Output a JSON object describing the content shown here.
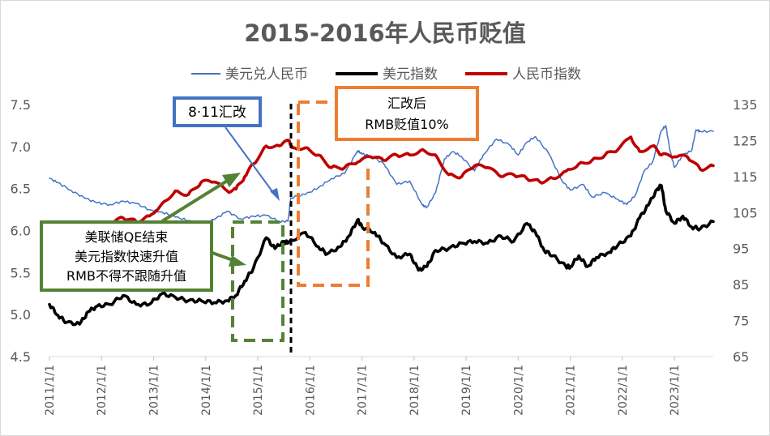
{
  "chart_data": {
    "type": "line",
    "title": "2015-2016年人民币贬值",
    "x_range": [
      "2011/1/1",
      "2023/9/30"
    ],
    "x_ticks": [
      "2011/1/1",
      "2012/1/1",
      "2013/1/1",
      "2014/1/1",
      "2015/1/1",
      "2016/1/1",
      "2017/1/1",
      "2018/1/1",
      "2019/1/1",
      "2020/1/1",
      "2021/1/1",
      "2022/1/1",
      "2023/1/1"
    ],
    "y_left": {
      "min": 4.5,
      "max": 7.5,
      "ticks": [
        "4.5",
        "5.0",
        "5.5",
        "6.0",
        "6.5",
        "7.0",
        "7.5"
      ]
    },
    "y_right": {
      "min": 65,
      "max": 135,
      "ticks": [
        "65",
        "75",
        "85",
        "95",
        "105",
        "115",
        "125",
        "135"
      ]
    },
    "legend_position": "top",
    "grid": false,
    "series": [
      {
        "name": "美元兑人民币",
        "color": "#4472c4",
        "axis": "left",
        "points": [
          [
            "2011/1/1",
            6.62
          ],
          [
            "2011/3/1",
            6.57
          ],
          [
            "2011/6/1",
            6.48
          ],
          [
            "2011/9/1",
            6.39
          ],
          [
            "2011/12/1",
            6.33
          ],
          [
            "2012/3/1",
            6.31
          ],
          [
            "2012/6/1",
            6.35
          ],
          [
            "2012/9/1",
            6.32
          ],
          [
            "2012/12/1",
            6.25
          ],
          [
            "2013/3/1",
            6.22
          ],
          [
            "2013/6/1",
            6.16
          ],
          [
            "2013/9/1",
            6.12
          ],
          [
            "2013/12/1",
            6.08
          ],
          [
            "2014/3/1",
            6.13
          ],
          [
            "2014/6/1",
            6.23
          ],
          [
            "2014/9/1",
            6.14
          ],
          [
            "2014/12/1",
            6.17
          ],
          [
            "2015/3/1",
            6.18
          ],
          [
            "2015/6/1",
            6.11
          ],
          [
            "2015/8/1",
            6.11
          ],
          [
            "2015/8/20",
            6.39
          ],
          [
            "2015/12/1",
            6.43
          ],
          [
            "2016/3/1",
            6.51
          ],
          [
            "2016/6/1",
            6.62
          ],
          [
            "2016/9/1",
            6.68
          ],
          [
            "2016/12/1",
            6.95
          ],
          [
            "2017/1/1",
            6.91
          ],
          [
            "2017/3/1",
            6.89
          ],
          [
            "2017/6/1",
            6.8
          ],
          [
            "2017/9/1",
            6.55
          ],
          [
            "2017/12/1",
            6.59
          ],
          [
            "2018/3/1",
            6.3
          ],
          [
            "2018/4/1",
            6.28
          ],
          [
            "2018/6/1",
            6.45
          ],
          [
            "2018/8/1",
            6.85
          ],
          [
            "2018/10/1",
            6.94
          ],
          [
            "2018/12/1",
            6.88
          ],
          [
            "2019/3/1",
            6.71
          ],
          [
            "2019/5/1",
            6.9
          ],
          [
            "2019/8/1",
            7.09
          ],
          [
            "2019/11/1",
            7.02
          ],
          [
            "2020/1/1",
            6.9
          ],
          [
            "2020/3/1",
            7.05
          ],
          [
            "2020/5/1",
            7.12
          ],
          [
            "2020/8/1",
            6.92
          ],
          [
            "2020/11/1",
            6.6
          ],
          [
            "2021/1/1",
            6.48
          ],
          [
            "2021/4/1",
            6.55
          ],
          [
            "2021/6/1",
            6.4
          ],
          [
            "2021/9/1",
            6.45
          ],
          [
            "2021/12/1",
            6.37
          ],
          [
            "2022/2/1",
            6.31
          ],
          [
            "2022/4/1",
            6.42
          ],
          [
            "2022/6/1",
            6.7
          ],
          [
            "2022/8/1",
            6.82
          ],
          [
            "2022/10/1",
            7.19
          ],
          [
            "2022/11/1",
            7.25
          ],
          [
            "2022/12/1",
            6.95
          ],
          [
            "2023/1/1",
            6.75
          ],
          [
            "2023/3/1",
            6.9
          ],
          [
            "2023/5/1",
            6.95
          ],
          [
            "2023/6/1",
            7.2
          ],
          [
            "2023/7/1",
            7.18
          ],
          [
            "2023/9/30",
            7.18
          ]
        ]
      },
      {
        "name": "美元指数",
        "color": "#000000",
        "axis": "right",
        "points": [
          [
            "2011/1/1",
            79.5
          ],
          [
            "2011/3/1",
            76.5
          ],
          [
            "2011/5/1",
            74.5
          ],
          [
            "2011/8/1",
            74.0
          ],
          [
            "2011/10/1",
            77.5
          ],
          [
            "2011/12/1",
            79.0
          ],
          [
            "2012/3/1",
            79.5
          ],
          [
            "2012/6/1",
            82.0
          ],
          [
            "2012/9/1",
            79.5
          ],
          [
            "2012/12/1",
            79.5
          ],
          [
            "2013/3/1",
            82.5
          ],
          [
            "2013/6/1",
            81.5
          ],
          [
            "2013/9/1",
            80.5
          ],
          [
            "2013/12/1",
            80.5
          ],
          [
            "2014/3/1",
            80.0
          ],
          [
            "2014/6/1",
            80.5
          ],
          [
            "2014/8/1",
            82.0
          ],
          [
            "2014/10/1",
            86.0
          ],
          [
            "2014/12/1",
            89.5
          ],
          [
            "2015/3/1",
            98.0
          ],
          [
            "2015/5/1",
            95.0
          ],
          [
            "2015/7/1",
            97.0
          ],
          [
            "2015/8/1",
            96.5
          ],
          [
            "2015/12/1",
            99.5
          ],
          [
            "2016/3/1",
            95.5
          ],
          [
            "2016/5/1",
            93.5
          ],
          [
            "2016/8/1",
            95.5
          ],
          [
            "2016/10/1",
            98.5
          ],
          [
            "2016/12/1",
            103.0
          ],
          [
            "2017/1/1",
            101.0
          ],
          [
            "2017/4/1",
            99.5
          ],
          [
            "2017/6/1",
            96.5
          ],
          [
            "2017/9/1",
            92.5
          ],
          [
            "2017/12/1",
            93.5
          ],
          [
            "2018/2/1",
            89.0
          ],
          [
            "2018/4/1",
            90.0
          ],
          [
            "2018/6/1",
            94.5
          ],
          [
            "2018/9/1",
            95.0
          ],
          [
            "2018/12/1",
            96.5
          ],
          [
            "2019/3/1",
            97.0
          ],
          [
            "2019/6/1",
            96.5
          ],
          [
            "2019/9/1",
            98.5
          ],
          [
            "2019/12/1",
            97.0
          ],
          [
            "2020/3/1",
            102.0
          ],
          [
            "2020/5/1",
            99.5
          ],
          [
            "2020/7/1",
            94.5
          ],
          [
            "2020/9/1",
            93.0
          ],
          [
            "2020/12/1",
            90.0
          ],
          [
            "2021/1/1",
            90.0
          ],
          [
            "2021/3/1",
            93.0
          ],
          [
            "2021/5/1",
            90.0
          ],
          [
            "2021/7/1",
            92.5
          ],
          [
            "2021/10/1",
            94.0
          ],
          [
            "2021/12/1",
            96.0
          ],
          [
            "2022/3/1",
            98.5
          ],
          [
            "2022/5/1",
            103.5
          ],
          [
            "2022/7/1",
            107.0
          ],
          [
            "2022/9/1",
            111.5
          ],
          [
            "2022/10/1",
            112.5
          ],
          [
            "2022/11/1",
            105.5
          ],
          [
            "2023/1/1",
            102.0
          ],
          [
            "2023/3/1",
            104.0
          ],
          [
            "2023/5/1",
            101.0
          ],
          [
            "2023/7/1",
            100.5
          ],
          [
            "2023/9/30",
            102.5
          ]
        ]
      },
      {
        "name": "人民币指数",
        "color": "#c00000",
        "axis": "right",
        "points": [
          [
            "2011/12/1",
            101.5
          ],
          [
            "2012/3/1",
            102.0
          ],
          [
            "2012/6/1",
            103.5
          ],
          [
            "2012/9/1",
            102.5
          ],
          [
            "2012/12/1",
            104.0
          ],
          [
            "2013/3/1",
            107.5
          ],
          [
            "2013/6/1",
            111.0
          ],
          [
            "2013/9/1",
            110.0
          ],
          [
            "2013/12/1",
            113.5
          ],
          [
            "2014/3/1",
            113.5
          ],
          [
            "2014/6/1",
            111.0
          ],
          [
            "2014/8/1",
            111.5
          ],
          [
            "2014/10/1",
            115.0
          ],
          [
            "2014/12/1",
            118.5
          ],
          [
            "2015/3/1",
            123.5
          ],
          [
            "2015/6/1",
            123.5
          ],
          [
            "2015/8/10",
            125.0
          ],
          [
            "2015/9/1",
            123.0
          ],
          [
            "2015/12/1",
            123.0
          ],
          [
            "2016/3/1",
            121.0
          ],
          [
            "2016/6/1",
            117.5
          ],
          [
            "2016/9/1",
            117.5
          ],
          [
            "2016/12/1",
            119.0
          ],
          [
            "2017/3/1",
            120.5
          ],
          [
            "2017/6/1",
            119.5
          ],
          [
            "2017/9/1",
            121.0
          ],
          [
            "2017/12/1",
            121.0
          ],
          [
            "2018/3/1",
            122.5
          ],
          [
            "2018/6/1",
            121.0
          ],
          [
            "2018/9/1",
            115.5
          ],
          [
            "2018/12/1",
            115.0
          ],
          [
            "2019/3/1",
            118.0
          ],
          [
            "2019/6/1",
            117.5
          ],
          [
            "2019/9/1",
            115.0
          ],
          [
            "2019/12/1",
            115.5
          ],
          [
            "2020/3/1",
            114.5
          ],
          [
            "2020/6/1",
            113.5
          ],
          [
            "2020/9/1",
            114.5
          ],
          [
            "2020/12/1",
            116.5
          ],
          [
            "2021/3/1",
            118.5
          ],
          [
            "2021/6/1",
            119.5
          ],
          [
            "2021/9/1",
            121.0
          ],
          [
            "2021/12/1",
            122.5
          ],
          [
            "2022/3/1",
            126.0
          ],
          [
            "2022/5/1",
            122.0
          ],
          [
            "2022/8/1",
            123.5
          ],
          [
            "2022/10/1",
            121.0
          ],
          [
            "2023/1/1",
            120.5
          ],
          [
            "2023/4/1",
            120.5
          ],
          [
            "2023/7/1",
            117.0
          ],
          [
            "2023/9/30",
            118.0
          ]
        ]
      }
    ],
    "annotations": [
      {
        "id": "note-811",
        "lines": [
          "8·11汇改"
        ],
        "border_color": "#4472c4"
      },
      {
        "id": "note-qe",
        "lines": [
          "美联储QE结束",
          "美元指数快速升值",
          "RMB不得不跟随升值"
        ],
        "border_color": "#548235"
      },
      {
        "id": "note-reform",
        "lines": [
          "汇改后",
          "RMB贬值10%"
        ],
        "border_color": "#ed7d31"
      }
    ]
  }
}
